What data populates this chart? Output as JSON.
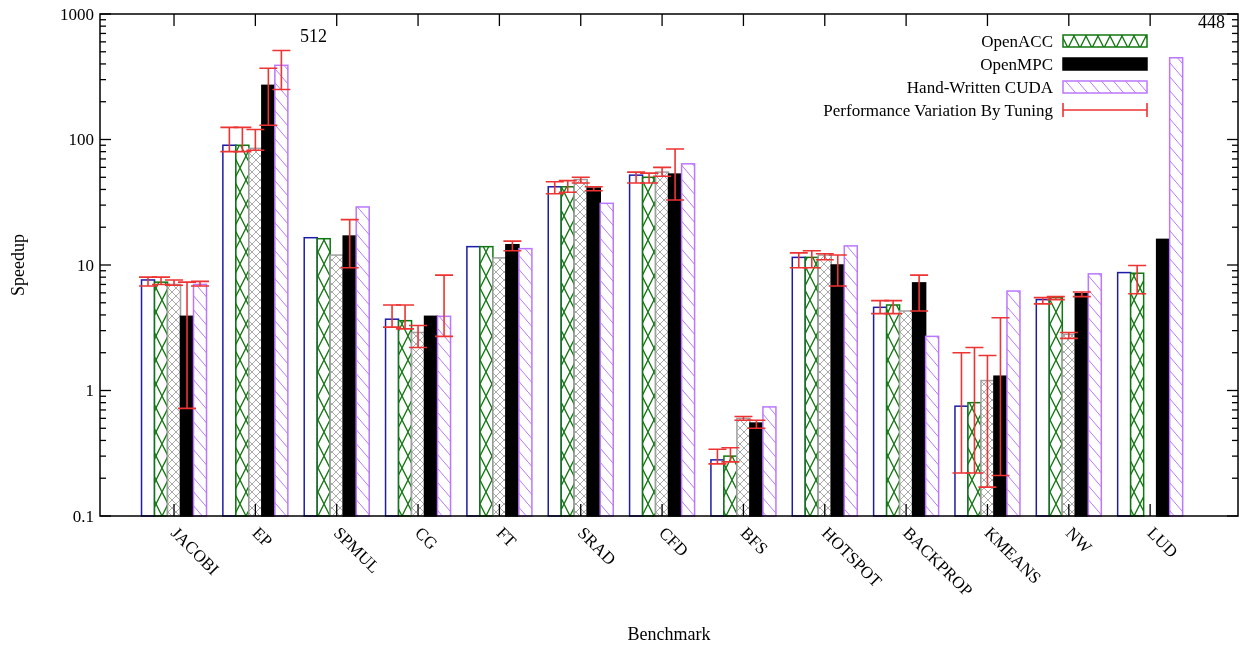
{
  "chart_data": {
    "type": "bar",
    "xlabel": "Benchmark",
    "ylabel": "Speedup",
    "log": true,
    "grid": false,
    "legend": "top right",
    "categories": [
      "JACOBI",
      "EP",
      "SPMUL",
      "CG",
      "FT",
      "SRAD",
      "CFD",
      "BFS",
      "HOTSPOT",
      "BACKPROP",
      "KMEANS",
      "NW",
      "LUD"
    ],
    "ylim": [
      0.1,
      1000
    ],
    "yticks": [
      0.1,
      {
        "value": 0.2,
        "label": null
      },
      {
        "value": 0.3,
        "label": null
      },
      {
        "value": 0.4,
        "label": null
      },
      {
        "value": 0.5,
        "label": null
      },
      {
        "value": 0.6,
        "label": null
      },
      {
        "value": 0.7,
        "label": null
      },
      {
        "value": 0.8,
        "label": null
      },
      {
        "value": 0.9,
        "label": null
      },
      1,
      {
        "value": 2,
        "label": null
      },
      {
        "value": 3,
        "label": null
      },
      {
        "value": 4,
        "label": null
      },
      {
        "value": 5,
        "label": null
      },
      {
        "value": 6,
        "label": null
      },
      {
        "value": 7,
        "label": null
      },
      {
        "value": 8,
        "label": null
      },
      {
        "value": 9,
        "label": null
      },
      10,
      {
        "value": 20,
        "label": null
      },
      {
        "value": 30,
        "label": null
      },
      {
        "value": 40,
        "label": null
      },
      {
        "value": 50,
        "label": null
      },
      {
        "value": 60,
        "label": null
      },
      {
        "value": 70,
        "label": null
      },
      {
        "value": 80,
        "label": null
      },
      {
        "value": 90,
        "label": null
      },
      100,
      {
        "value": 200,
        "label": null
      },
      {
        "value": 300,
        "label": null
      },
      {
        "value": 400,
        "label": null
      },
      {
        "value": 500,
        "label": null
      },
      {
        "value": 600,
        "label": null
      },
      {
        "value": 700,
        "label": null
      },
      {
        "value": 800,
        "label": null
      },
      {
        "value": 900,
        "label": null
      },
      1000
    ],
    "series": [
      {
        "color": "#1c1ca8",
        "values": [
          7.6,
          90,
          16.5,
          3.7,
          14,
          42,
          52,
          0.28,
          11.5,
          4.6,
          0.75,
          5.3,
          8.7
        ],
        "errors": [
          [
            6.8,
            8.0
          ],
          [
            80,
            125
          ],
          null,
          [
            3.2,
            4.8
          ],
          null,
          [
            37,
            46
          ],
          [
            45,
            55
          ],
          [
            0.26,
            0.34
          ],
          [
            9.5,
            12.5
          ],
          [
            4.1,
            5.2
          ],
          [
            0.22,
            2.0
          ],
          [
            4.9,
            5.5
          ],
          null
        ]
      },
      {
        "name": "OpenACC",
        "color": "#117711",
        "values": [
          7.3,
          90,
          16.2,
          3.6,
          14,
          42,
          50,
          0.3,
          11.5,
          4.8,
          0.8,
          5.5,
          8.6
        ],
        "errors": [
          [
            7.0,
            8.0
          ],
          [
            80,
            125
          ],
          null,
          [
            3.1,
            4.8
          ],
          null,
          [
            38,
            47
          ],
          [
            45,
            54
          ],
          [
            0.27,
            0.35
          ],
          [
            9.5,
            13
          ],
          [
            4.1,
            5.2
          ],
          [
            0.22,
            2.2
          ],
          [
            5.3,
            5.6
          ],
          [
            5.9,
            9.9
          ]
        ]
      },
      {
        "color": "#a0a0a0",
        "values": [
          7.0,
          85,
          12,
          2.9,
          11.4,
          48,
          55,
          0.6,
          12,
          4.3,
          1.2,
          2.8,
          null
        ],
        "errors": [
          [
            6.9,
            7.6
          ],
          [
            82,
            120
          ],
          null,
          [
            2.2,
            3.3
          ],
          null,
          [
            45,
            50
          ],
          [
            51,
            60
          ],
          [
            0.58,
            0.62
          ],
          [
            11,
            12.3
          ],
          null,
          [
            0.17,
            1.9
          ],
          [
            2.6,
            2.9
          ],
          null
        ]
      },
      {
        "name": "OpenMPC",
        "color": "#000000",
        "values": [
          3.9,
          270,
          17,
          3.9,
          14.5,
          41,
          53,
          0.55,
          10,
          7.2,
          1.3,
          5.9,
          16
        ],
        "errors": [
          [
            0.72,
            7.3
          ],
          [
            130,
            370
          ],
          [
            9.5,
            23
          ],
          null,
          [
            13,
            15.5
          ],
          [
            39,
            42
          ],
          [
            33,
            84
          ],
          [
            0.5,
            0.58
          ],
          [
            6.8,
            12
          ],
          [
            4.3,
            8.3
          ],
          [
            0.21,
            3.8
          ],
          [
            5.6,
            6.1
          ],
          null
        ]
      },
      {
        "name": "Hand-Written CUDA",
        "color": "#bb77ff",
        "values": [
          7.0,
          390,
          29,
          3.9,
          13.5,
          31,
          64,
          0.74,
          14.2,
          2.7,
          6.2,
          8.5,
          448
        ],
        "errors": [
          [
            6.8,
            7.4
          ],
          [
            250,
            512
          ],
          null,
          [
            2.7,
            8.3
          ],
          null,
          null,
          null,
          null,
          null,
          null,
          null,
          null,
          null
        ]
      }
    ],
    "annotations": [
      "512",
      "448",
      "Performance Variation By Tuning"
    ]
  }
}
